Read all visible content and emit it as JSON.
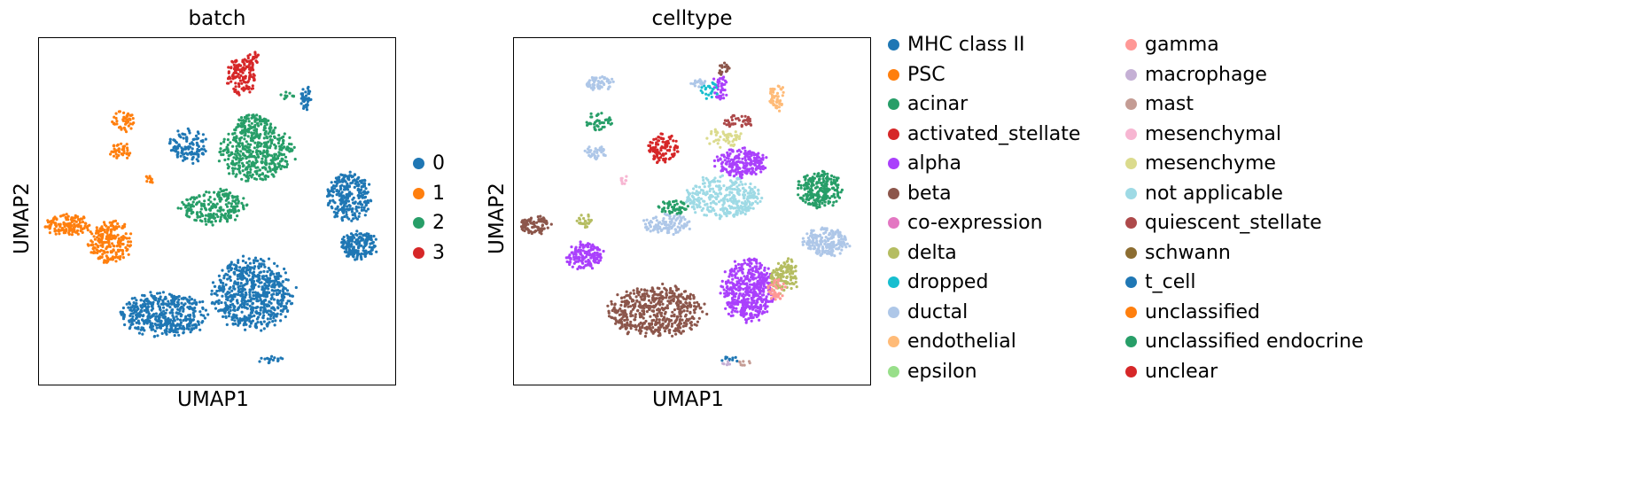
{
  "chart_data": [
    {
      "type": "scatter",
      "title": "batch",
      "xlabel": "UMAP1",
      "ylabel": "UMAP2",
      "legend_placement": "right",
      "legend": [
        {
          "label": "0",
          "color": "#1f77b4"
        },
        {
          "label": "1",
          "color": "#ff7f0e"
        },
        {
          "label": "2",
          "color": "#279e68"
        },
        {
          "label": "3",
          "color": "#d62728"
        }
      ],
      "clusters": [
        {
          "label": "0",
          "cx": 0.6,
          "cy": 0.74,
          "rx": 0.11,
          "ry": 0.1,
          "n": 650
        },
        {
          "label": "0",
          "cx": 0.35,
          "cy": 0.8,
          "rx": 0.12,
          "ry": 0.06,
          "n": 450
        },
        {
          "label": "0",
          "cx": 0.87,
          "cy": 0.46,
          "rx": 0.06,
          "ry": 0.07,
          "n": 260
        },
        {
          "label": "0",
          "cx": 0.9,
          "cy": 0.6,
          "rx": 0.05,
          "ry": 0.04,
          "n": 180
        },
        {
          "label": "0",
          "cx": 0.42,
          "cy": 0.31,
          "rx": 0.05,
          "ry": 0.05,
          "n": 120
        },
        {
          "label": "0",
          "cx": 0.75,
          "cy": 0.17,
          "rx": 0.015,
          "ry": 0.04,
          "n": 40
        },
        {
          "label": "0",
          "cx": 0.65,
          "cy": 0.93,
          "rx": 0.035,
          "ry": 0.01,
          "n": 18
        },
        {
          "label": "1",
          "cx": 0.08,
          "cy": 0.54,
          "rx": 0.06,
          "ry": 0.03,
          "n": 140
        },
        {
          "label": "1",
          "cx": 0.2,
          "cy": 0.59,
          "rx": 0.06,
          "ry": 0.06,
          "n": 220
        },
        {
          "label": "1",
          "cx": 0.24,
          "cy": 0.24,
          "rx": 0.035,
          "ry": 0.03,
          "n": 45
        },
        {
          "label": "1",
          "cx": 0.23,
          "cy": 0.33,
          "rx": 0.03,
          "ry": 0.025,
          "n": 40
        },
        {
          "label": "1",
          "cx": 0.31,
          "cy": 0.41,
          "rx": 0.012,
          "ry": 0.012,
          "n": 10
        },
        {
          "label": "2",
          "cx": 0.61,
          "cy": 0.33,
          "rx": 0.1,
          "ry": 0.08,
          "n": 420
        },
        {
          "label": "2",
          "cx": 0.49,
          "cy": 0.49,
          "rx": 0.09,
          "ry": 0.05,
          "n": 220
        },
        {
          "label": "2",
          "cx": 0.6,
          "cy": 0.25,
          "rx": 0.05,
          "ry": 0.03,
          "n": 90
        },
        {
          "label": "2",
          "cx": 0.7,
          "cy": 0.17,
          "rx": 0.02,
          "ry": 0.015,
          "n": 10
        },
        {
          "label": "3",
          "cx": 0.57,
          "cy": 0.11,
          "rx": 0.04,
          "ry": 0.05,
          "n": 130
        },
        {
          "label": "3",
          "cx": 0.6,
          "cy": 0.06,
          "rx": 0.02,
          "ry": 0.02,
          "n": 25
        }
      ]
    },
    {
      "type": "scatter",
      "title": "celltype",
      "xlabel": "UMAP1",
      "ylabel": "UMAP2",
      "legend_placement": "right",
      "legend": [
        {
          "label": "MHC class II",
          "color": "#1f77b4"
        },
        {
          "label": "PSC",
          "color": "#ff7f0e"
        },
        {
          "label": "acinar",
          "color": "#279e68"
        },
        {
          "label": "activated_stellate",
          "color": "#d62728"
        },
        {
          "label": "alpha",
          "color": "#aa40fc"
        },
        {
          "label": "beta",
          "color": "#8c564b"
        },
        {
          "label": "co-expression",
          "color": "#e377c2"
        },
        {
          "label": "delta",
          "color": "#b5bd61"
        },
        {
          "label": "dropped",
          "color": "#17becf"
        },
        {
          "label": "ductal",
          "color": "#aec7e8"
        },
        {
          "label": "endothelial",
          "color": "#ffbb78"
        },
        {
          "label": "epsilon",
          "color": "#98df8a"
        },
        {
          "label": "gamma",
          "color": "#ff9896"
        },
        {
          "label": "macrophage",
          "color": "#c5b0d5"
        },
        {
          "label": "mast",
          "color": "#c49c94"
        },
        {
          "label": "mesenchymal",
          "color": "#f7b6d2"
        },
        {
          "label": "mesenchyme",
          "color": "#dbdb8d"
        },
        {
          "label": "not applicable",
          "color": "#9edae5"
        },
        {
          "label": "quiescent_stellate",
          "color": "#ad494a"
        },
        {
          "label": "schwann",
          "color": "#8c6d31"
        },
        {
          "label": "t_cell",
          "color": "#1f77b4"
        },
        {
          "label": "unclassified",
          "color": "#ff7f0e"
        },
        {
          "label": "unclassified endocrine",
          "color": "#279e68"
        },
        {
          "label": "unclear",
          "color": "#d62728"
        }
      ],
      "clusters": [
        {
          "label": "beta",
          "cx": 0.4,
          "cy": 0.79,
          "rx": 0.13,
          "ry": 0.07,
          "n": 520
        },
        {
          "label": "alpha",
          "cx": 0.66,
          "cy": 0.73,
          "rx": 0.07,
          "ry": 0.09,
          "n": 480
        },
        {
          "label": "delta",
          "cx": 0.76,
          "cy": 0.69,
          "rx": 0.04,
          "ry": 0.05,
          "n": 120
        },
        {
          "label": "gamma",
          "cx": 0.74,
          "cy": 0.73,
          "rx": 0.025,
          "ry": 0.03,
          "n": 40
        },
        {
          "label": "acinar",
          "cx": 0.86,
          "cy": 0.44,
          "rx": 0.06,
          "ry": 0.05,
          "n": 240
        },
        {
          "label": "ductal",
          "cx": 0.88,
          "cy": 0.59,
          "rx": 0.06,
          "ry": 0.04,
          "n": 200
        },
        {
          "label": "ductal",
          "cx": 0.43,
          "cy": 0.54,
          "rx": 0.07,
          "ry": 0.03,
          "n": 110
        },
        {
          "label": "ductal",
          "cx": 0.24,
          "cy": 0.13,
          "rx": 0.04,
          "ry": 0.02,
          "n": 60
        },
        {
          "label": "ductal",
          "cx": 0.23,
          "cy": 0.33,
          "rx": 0.03,
          "ry": 0.02,
          "n": 40
        },
        {
          "label": "not applicable",
          "cx": 0.59,
          "cy": 0.46,
          "rx": 0.1,
          "ry": 0.06,
          "n": 320
        },
        {
          "label": "alpha",
          "cx": 0.64,
          "cy": 0.36,
          "rx": 0.07,
          "ry": 0.04,
          "n": 220
        },
        {
          "label": "alpha",
          "cx": 0.2,
          "cy": 0.63,
          "rx": 0.05,
          "ry": 0.04,
          "n": 160
        },
        {
          "label": "beta",
          "cx": 0.06,
          "cy": 0.54,
          "rx": 0.045,
          "ry": 0.025,
          "n": 90
        },
        {
          "label": "delta",
          "cx": 0.2,
          "cy": 0.53,
          "rx": 0.02,
          "ry": 0.02,
          "n": 25
        },
        {
          "label": "activated_stellate",
          "cx": 0.42,
          "cy": 0.32,
          "rx": 0.04,
          "ry": 0.04,
          "n": 110
        },
        {
          "label": "acinar",
          "cx": 0.24,
          "cy": 0.24,
          "rx": 0.035,
          "ry": 0.025,
          "n": 40
        },
        {
          "label": "acinar",
          "cx": 0.45,
          "cy": 0.49,
          "rx": 0.04,
          "ry": 0.02,
          "n": 50
        },
        {
          "label": "endothelial",
          "cx": 0.74,
          "cy": 0.17,
          "rx": 0.02,
          "ry": 0.04,
          "n": 50
        },
        {
          "label": "alpha",
          "cx": 0.58,
          "cy": 0.14,
          "rx": 0.02,
          "ry": 0.04,
          "n": 40
        },
        {
          "label": "dropped",
          "cx": 0.55,
          "cy": 0.15,
          "rx": 0.025,
          "ry": 0.025,
          "n": 25
        },
        {
          "label": "ductal",
          "cx": 0.52,
          "cy": 0.13,
          "rx": 0.02,
          "ry": 0.012,
          "n": 20
        },
        {
          "label": "beta",
          "cx": 0.59,
          "cy": 0.09,
          "rx": 0.015,
          "ry": 0.02,
          "n": 20
        },
        {
          "label": "mesenchyme",
          "cx": 0.59,
          "cy": 0.29,
          "rx": 0.05,
          "ry": 0.025,
          "n": 50
        },
        {
          "label": "quiescent_stellate",
          "cx": 0.63,
          "cy": 0.24,
          "rx": 0.04,
          "ry": 0.02,
          "n": 40
        },
        {
          "label": "mesenchymal",
          "cx": 0.31,
          "cy": 0.41,
          "rx": 0.01,
          "ry": 0.012,
          "n": 10
        },
        {
          "label": "t_cell",
          "cx": 0.61,
          "cy": 0.93,
          "rx": 0.03,
          "ry": 0.01,
          "n": 10
        },
        {
          "label": "mast",
          "cx": 0.65,
          "cy": 0.94,
          "rx": 0.02,
          "ry": 0.008,
          "n": 8
        },
        {
          "label": "macrophage",
          "cx": 0.6,
          "cy": 0.94,
          "rx": 0.015,
          "ry": 0.008,
          "n": 6
        }
      ]
    }
  ]
}
